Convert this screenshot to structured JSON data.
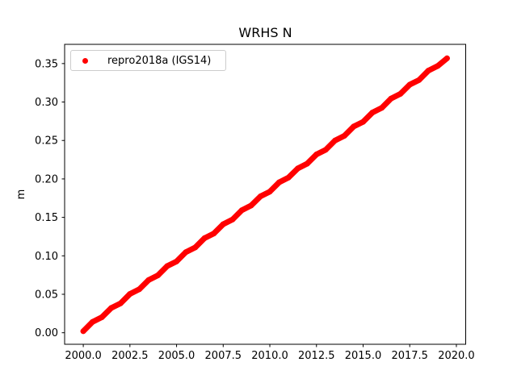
{
  "figure": {
    "background": "#ffffff",
    "text_color": "#000000",
    "spine_color": "#000000",
    "legend_border_color": "#cccccc"
  },
  "chart_data": {
    "type": "scatter",
    "title": "WRHS N",
    "xlabel": "",
    "ylabel": "m",
    "xlim": [
      1999.0,
      2020.5
    ],
    "ylim": [
      -0.015,
      0.375
    ],
    "grid": false,
    "legend_position": "upper left",
    "xticks": [
      2000.0,
      2002.5,
      2005.0,
      2007.5,
      2010.0,
      2012.5,
      2015.0,
      2017.5,
      2020.0
    ],
    "xtick_labels": [
      "2000.0",
      "2002.5",
      "2005.0",
      "2007.5",
      "2010.0",
      "2012.5",
      "2015.0",
      "2017.5",
      "2020.0"
    ],
    "yticks": [
      0.0,
      0.05,
      0.1,
      0.15,
      0.2,
      0.25,
      0.3,
      0.35
    ],
    "ytick_labels": [
      "0.00",
      "0.05",
      "0.10",
      "0.15",
      "0.20",
      "0.25",
      "0.30",
      "0.35"
    ],
    "series": [
      {
        "name": "repro2018a (IGS14)",
        "color": "#ff0000",
        "marker": "dot",
        "x": [
          2000.0,
          2000.5,
          2001.0,
          2001.5,
          2002.0,
          2002.5,
          2003.0,
          2003.5,
          2004.0,
          2004.5,
          2005.0,
          2005.5,
          2006.0,
          2006.5,
          2007.0,
          2007.5,
          2008.0,
          2008.5,
          2009.0,
          2009.5,
          2010.0,
          2010.5,
          2011.0,
          2011.5,
          2012.0,
          2012.5,
          2013.0,
          2013.5,
          2014.0,
          2014.5,
          2015.0,
          2015.5,
          2016.0,
          2016.5,
          2017.0,
          2017.5,
          2018.0,
          2018.5,
          2019.0,
          2019.5
        ],
        "y": [
          0.002,
          0.0141,
          0.0202,
          0.0322,
          0.0383,
          0.0504,
          0.0565,
          0.0685,
          0.0746,
          0.0867,
          0.0928,
          0.1048,
          0.1109,
          0.123,
          0.1291,
          0.1411,
          0.1472,
          0.1593,
          0.1654,
          0.1774,
          0.1835,
          0.1956,
          0.2017,
          0.2137,
          0.2198,
          0.2319,
          0.238,
          0.25,
          0.2561,
          0.2682,
          0.2743,
          0.2863,
          0.2924,
          0.3045,
          0.3106,
          0.3226,
          0.3287,
          0.3408,
          0.3469,
          0.3569
        ]
      }
    ]
  }
}
